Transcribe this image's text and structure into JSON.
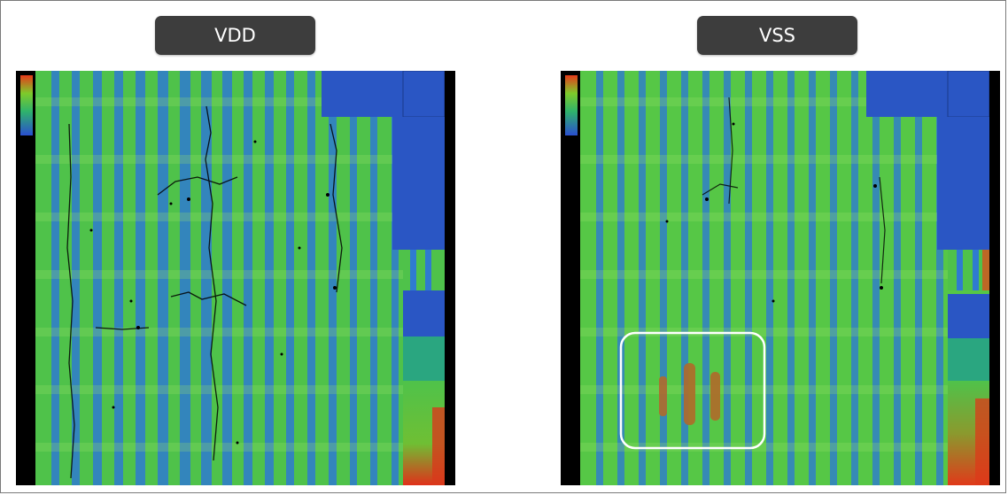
{
  "panels": [
    {
      "id": "vdd",
      "label": "VDD"
    },
    {
      "id": "vss",
      "label": "VSS"
    }
  ],
  "colors": {
    "heatmap_low": "#2a5fc8",
    "heatmap_mid": "#4fc24a",
    "heatmap_high": "#e03a1e",
    "title_background": "#3d3d3d",
    "highlight_box": "#ffffff"
  },
  "icons": [
    "color-scale-legend"
  ]
}
